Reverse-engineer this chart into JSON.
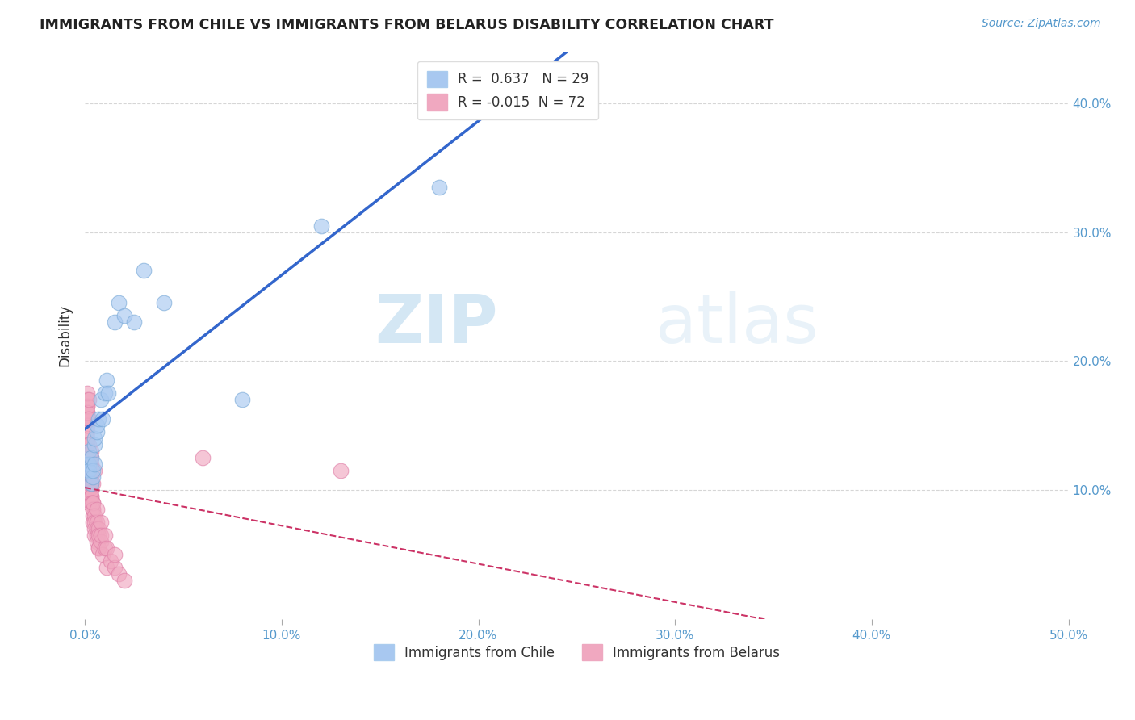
{
  "title": "IMMIGRANTS FROM CHILE VS IMMIGRANTS FROM BELARUS DISABILITY CORRELATION CHART",
  "source": "Source: ZipAtlas.com",
  "ylabel": "Disability",
  "xlim": [
    0.0,
    0.5
  ],
  "ylim": [
    0.0,
    0.44
  ],
  "xticks": [
    0.0,
    0.1,
    0.2,
    0.3,
    0.4,
    0.5
  ],
  "yticks": [
    0.1,
    0.2,
    0.3,
    0.4
  ],
  "xticklabels": [
    "0.0%",
    "10.0%",
    "20.0%",
    "30.0%",
    "40.0%",
    "50.0%"
  ],
  "yticklabels": [
    "10.0%",
    "20.0%",
    "30.0%",
    "40.0%"
  ],
  "chile_color": "#a8c8f0",
  "belarus_color": "#f0a8c0",
  "chile_edge_color": "#7aaad8",
  "belarus_edge_color": "#e080a8",
  "chile_line_color": "#3366cc",
  "belarus_line_color": "#cc3366",
  "R_chile": 0.637,
  "N_chile": 29,
  "R_belarus": -0.015,
  "N_belarus": 72,
  "legend_labels": [
    "Immigrants from Chile",
    "Immigrants from Belarus"
  ],
  "watermark_zip": "ZIP",
  "watermark_atlas": "atlas",
  "background_color": "#ffffff",
  "grid_color": "#cccccc",
  "tick_color": "#5599cc",
  "chile_scatter_x": [
    0.001,
    0.001,
    0.002,
    0.002,
    0.002,
    0.003,
    0.003,
    0.004,
    0.004,
    0.005,
    0.005,
    0.005,
    0.006,
    0.006,
    0.007,
    0.008,
    0.009,
    0.01,
    0.011,
    0.012,
    0.015,
    0.017,
    0.02,
    0.025,
    0.03,
    0.04,
    0.08,
    0.12,
    0.18
  ],
  "chile_scatter_y": [
    0.12,
    0.115,
    0.13,
    0.12,
    0.115,
    0.125,
    0.105,
    0.11,
    0.115,
    0.12,
    0.135,
    0.14,
    0.145,
    0.15,
    0.155,
    0.17,
    0.155,
    0.175,
    0.185,
    0.175,
    0.23,
    0.245,
    0.235,
    0.23,
    0.27,
    0.245,
    0.17,
    0.305,
    0.335
  ],
  "belarus_scatter_x": [
    0.001,
    0.001,
    0.001,
    0.001,
    0.001,
    0.001,
    0.001,
    0.001,
    0.001,
    0.001,
    0.001,
    0.001,
    0.001,
    0.002,
    0.002,
    0.002,
    0.002,
    0.002,
    0.002,
    0.002,
    0.002,
    0.002,
    0.002,
    0.002,
    0.002,
    0.003,
    0.003,
    0.003,
    0.003,
    0.003,
    0.003,
    0.003,
    0.003,
    0.003,
    0.003,
    0.003,
    0.004,
    0.004,
    0.004,
    0.004,
    0.004,
    0.004,
    0.004,
    0.005,
    0.005,
    0.005,
    0.005,
    0.005,
    0.006,
    0.006,
    0.006,
    0.006,
    0.006,
    0.007,
    0.007,
    0.007,
    0.007,
    0.008,
    0.008,
    0.008,
    0.009,
    0.01,
    0.01,
    0.011,
    0.011,
    0.013,
    0.015,
    0.015,
    0.017,
    0.02,
    0.06,
    0.13
  ],
  "belarus_scatter_y": [
    0.155,
    0.145,
    0.16,
    0.17,
    0.14,
    0.155,
    0.165,
    0.135,
    0.155,
    0.165,
    0.175,
    0.15,
    0.16,
    0.17,
    0.09,
    0.1,
    0.115,
    0.12,
    0.135,
    0.155,
    0.1,
    0.115,
    0.105,
    0.12,
    0.11,
    0.125,
    0.13,
    0.095,
    0.11,
    0.12,
    0.1,
    0.115,
    0.105,
    0.095,
    0.09,
    0.105,
    0.085,
    0.09,
    0.105,
    0.08,
    0.085,
    0.075,
    0.09,
    0.08,
    0.075,
    0.07,
    0.065,
    0.115,
    0.075,
    0.065,
    0.085,
    0.06,
    0.07,
    0.055,
    0.07,
    0.065,
    0.055,
    0.075,
    0.06,
    0.065,
    0.05,
    0.055,
    0.065,
    0.04,
    0.055,
    0.045,
    0.04,
    0.05,
    0.035,
    0.03,
    0.125,
    0.115
  ]
}
